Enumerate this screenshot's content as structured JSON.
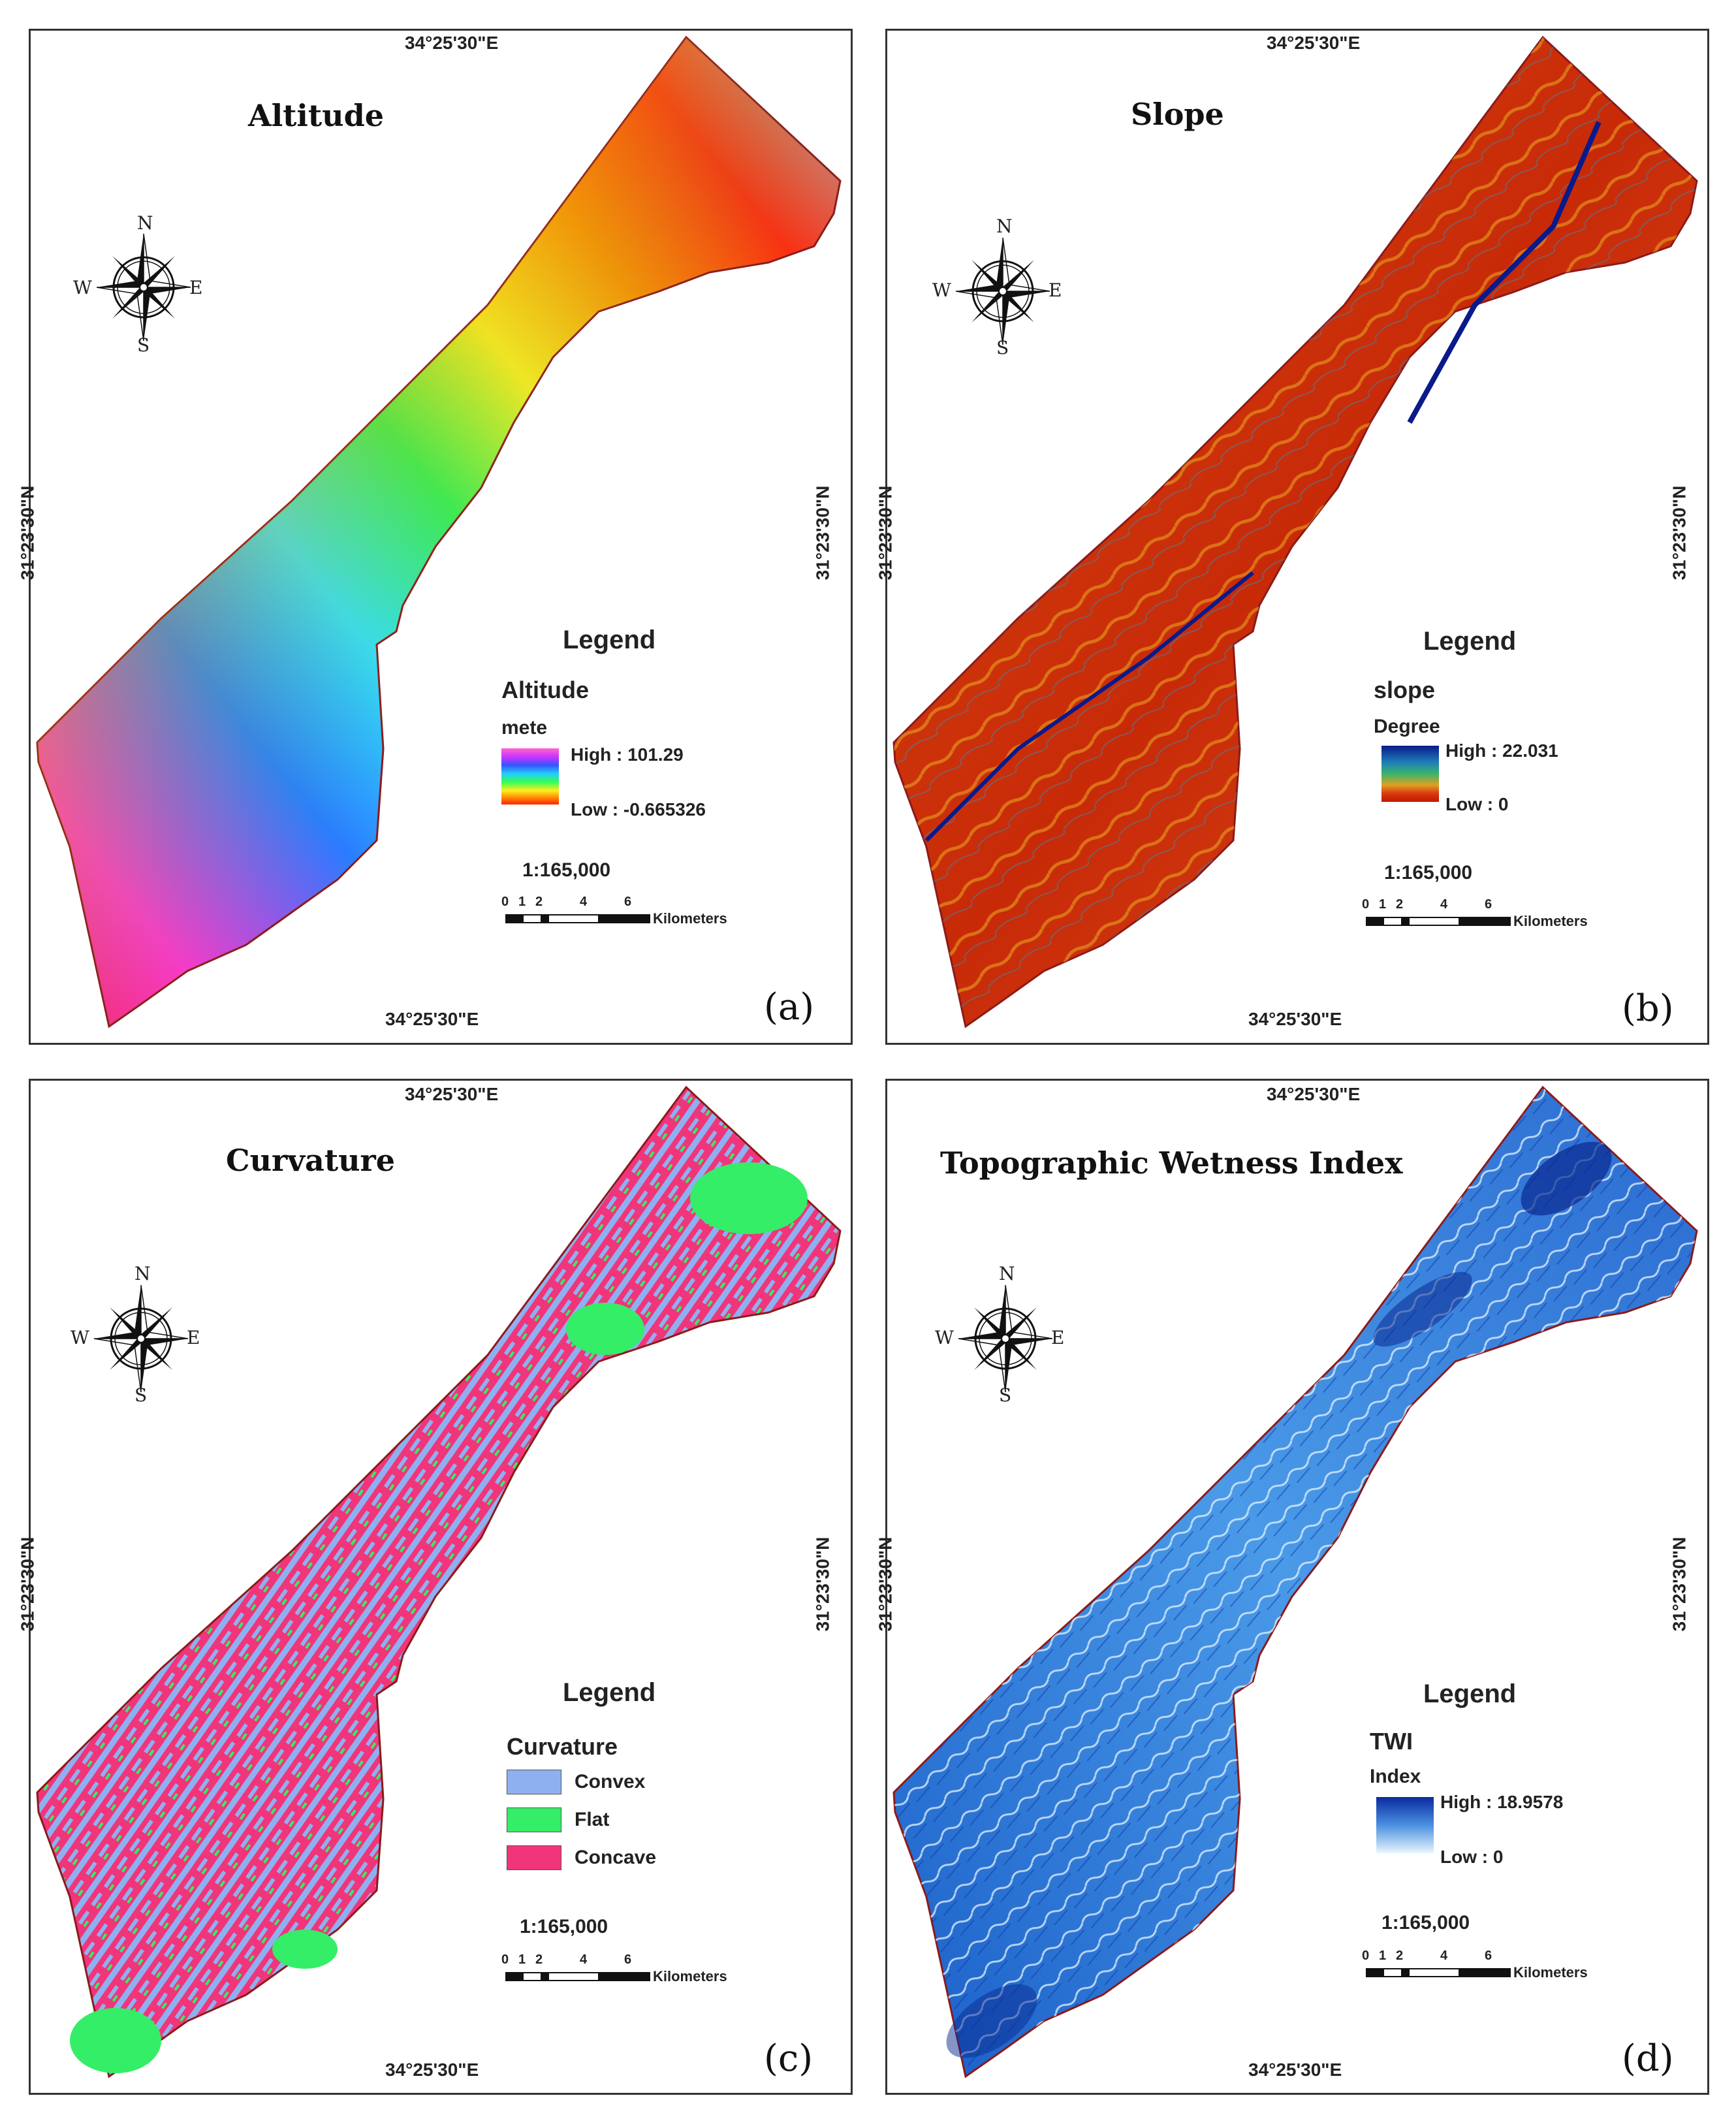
{
  "panels": {
    "a": {
      "title": "Altitude",
      "letter": "(a)",
      "coord_top": "34°25'30\"E",
      "coord_bottom": "34°25'30\"E",
      "coord_left": "31°23'30\"N",
      "coord_right": "31°23'30\"N",
      "legend_title": "Legend",
      "legend_layer": "Altitude",
      "legend_unit": "mete",
      "high_label": "High : 101.29",
      "low_label": "Low : -0.665326",
      "scale": "1:165,000",
      "ramp_colors": [
        "#ff1a66",
        "#ff33cc",
        "#9933ff",
        "#3355ff",
        "#22ccff",
        "#33ff66",
        "#ffee22",
        "#ff8800",
        "#ff2200"
      ]
    },
    "b": {
      "title": "Slope",
      "letter": "(b)",
      "coord_top": "34°25'30\"E",
      "coord_bottom": "34°25'30\"E",
      "coord_left": "31°23'30\"N",
      "coord_right": "31°23'30\"N",
      "legend_title": "Legend",
      "legend_layer": "slope",
      "legend_unit": "Degree",
      "high_label": "High : 22.031",
      "low_label": "Low : 0",
      "scale": "1:165,000",
      "ramp_colors": [
        "#0a1a8a",
        "#1f7fb8",
        "#39b46a",
        "#e0a020",
        "#d93a10",
        "#c01800"
      ]
    },
    "c": {
      "title": "Curvature",
      "letter": "(c)",
      "coord_top": "34°25'30\"E",
      "coord_bottom": "34°25'30\"E",
      "coord_left": "31°23'30\"N",
      "coord_right": "31°23'30\"N",
      "legend_title": "Legend",
      "legend_layer": "Curvature",
      "classes": [
        {
          "label": "Convex",
          "color": "#8fb0f0"
        },
        {
          "label": "Flat",
          "color": "#33ee66"
        },
        {
          "label": "Concave",
          "color": "#f0357a"
        }
      ],
      "scale": "1:165,000"
    },
    "d": {
      "title": "Topographic Wetness Index",
      "letter": "(d)",
      "coord_top": "34°25'30\"E",
      "coord_bottom": "34°25'30\"E",
      "coord_left": "31°23'30\"N",
      "coord_right": "31°23'30\"N",
      "legend_title": "Legend",
      "legend_layer": "TWI",
      "legend_unit": "Index",
      "high_label": "High : 18.9578",
      "low_label": "Low : 0",
      "scale": "1:165,000",
      "ramp_colors": [
        "#0a2aa0",
        "#2a70d8",
        "#7cc0f0",
        "#e8f6ff"
      ]
    }
  },
  "scalebar": {
    "ticks": [
      "0",
      "1",
      "2",
      "4",
      "6"
    ],
    "unit": "Kilometers"
  },
  "compass": {
    "n": "N",
    "s": "S",
    "e": "E",
    "w": "W"
  }
}
